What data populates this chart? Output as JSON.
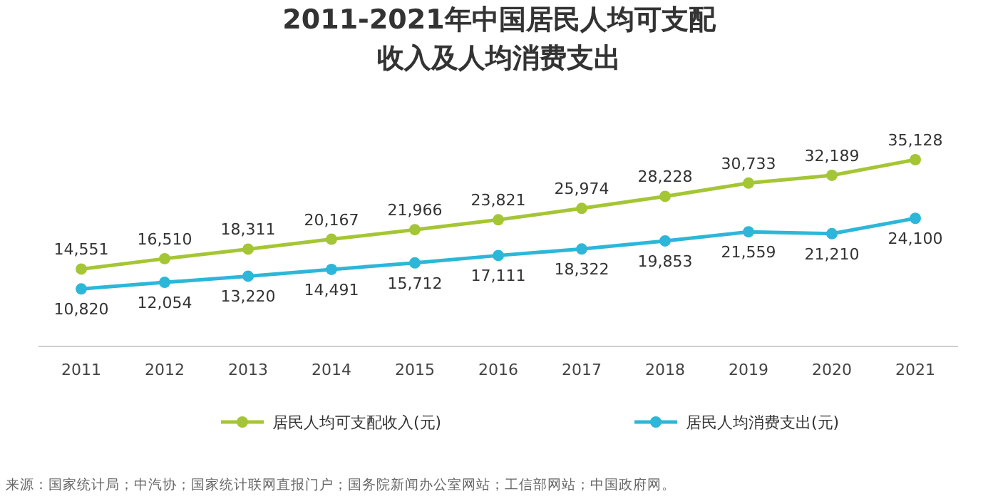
{
  "chart_data": {
    "type": "line",
    "title": "2011-2021年中国居民人均可支配收入及人均消费支出",
    "categories": [
      "2011",
      "2012",
      "2013",
      "2014",
      "2015",
      "2016",
      "2017",
      "2018",
      "2019",
      "2020",
      "2021"
    ],
    "series": [
      {
        "name": "居民人均可支配收入(元)",
        "color": "#a5c634",
        "values": [
          14551,
          16510,
          18311,
          20167,
          21966,
          23821,
          25974,
          28228,
          30733,
          32189,
          35128
        ],
        "value_labels": [
          "14,551",
          "16,510",
          "18,311",
          "20,167",
          "21,966",
          "23,821",
          "25,974",
          "28,228",
          "30,733",
          "32,189",
          "35,128"
        ]
      },
      {
        "name": "居民人均消费支出(元)",
        "color": "#2cb7d9",
        "values": [
          10820,
          12054,
          13220,
          14491,
          15712,
          17111,
          18322,
          19853,
          21559,
          21210,
          24100
        ],
        "value_labels": [
          "10,820",
          "12,054",
          "13,220",
          "14,491",
          "15,712",
          "17,111",
          "18,322",
          "19,853",
          "21,559",
          "21,210",
          "24,100"
        ]
      }
    ],
    "marker": "circle",
    "legend": "bottom",
    "grid": false,
    "annotations": [
      "来源：国家统计局；中汽协；国家统计联网直报门户；国务院新闻办公室网站；工信部网站；中国政府网。"
    ]
  }
}
